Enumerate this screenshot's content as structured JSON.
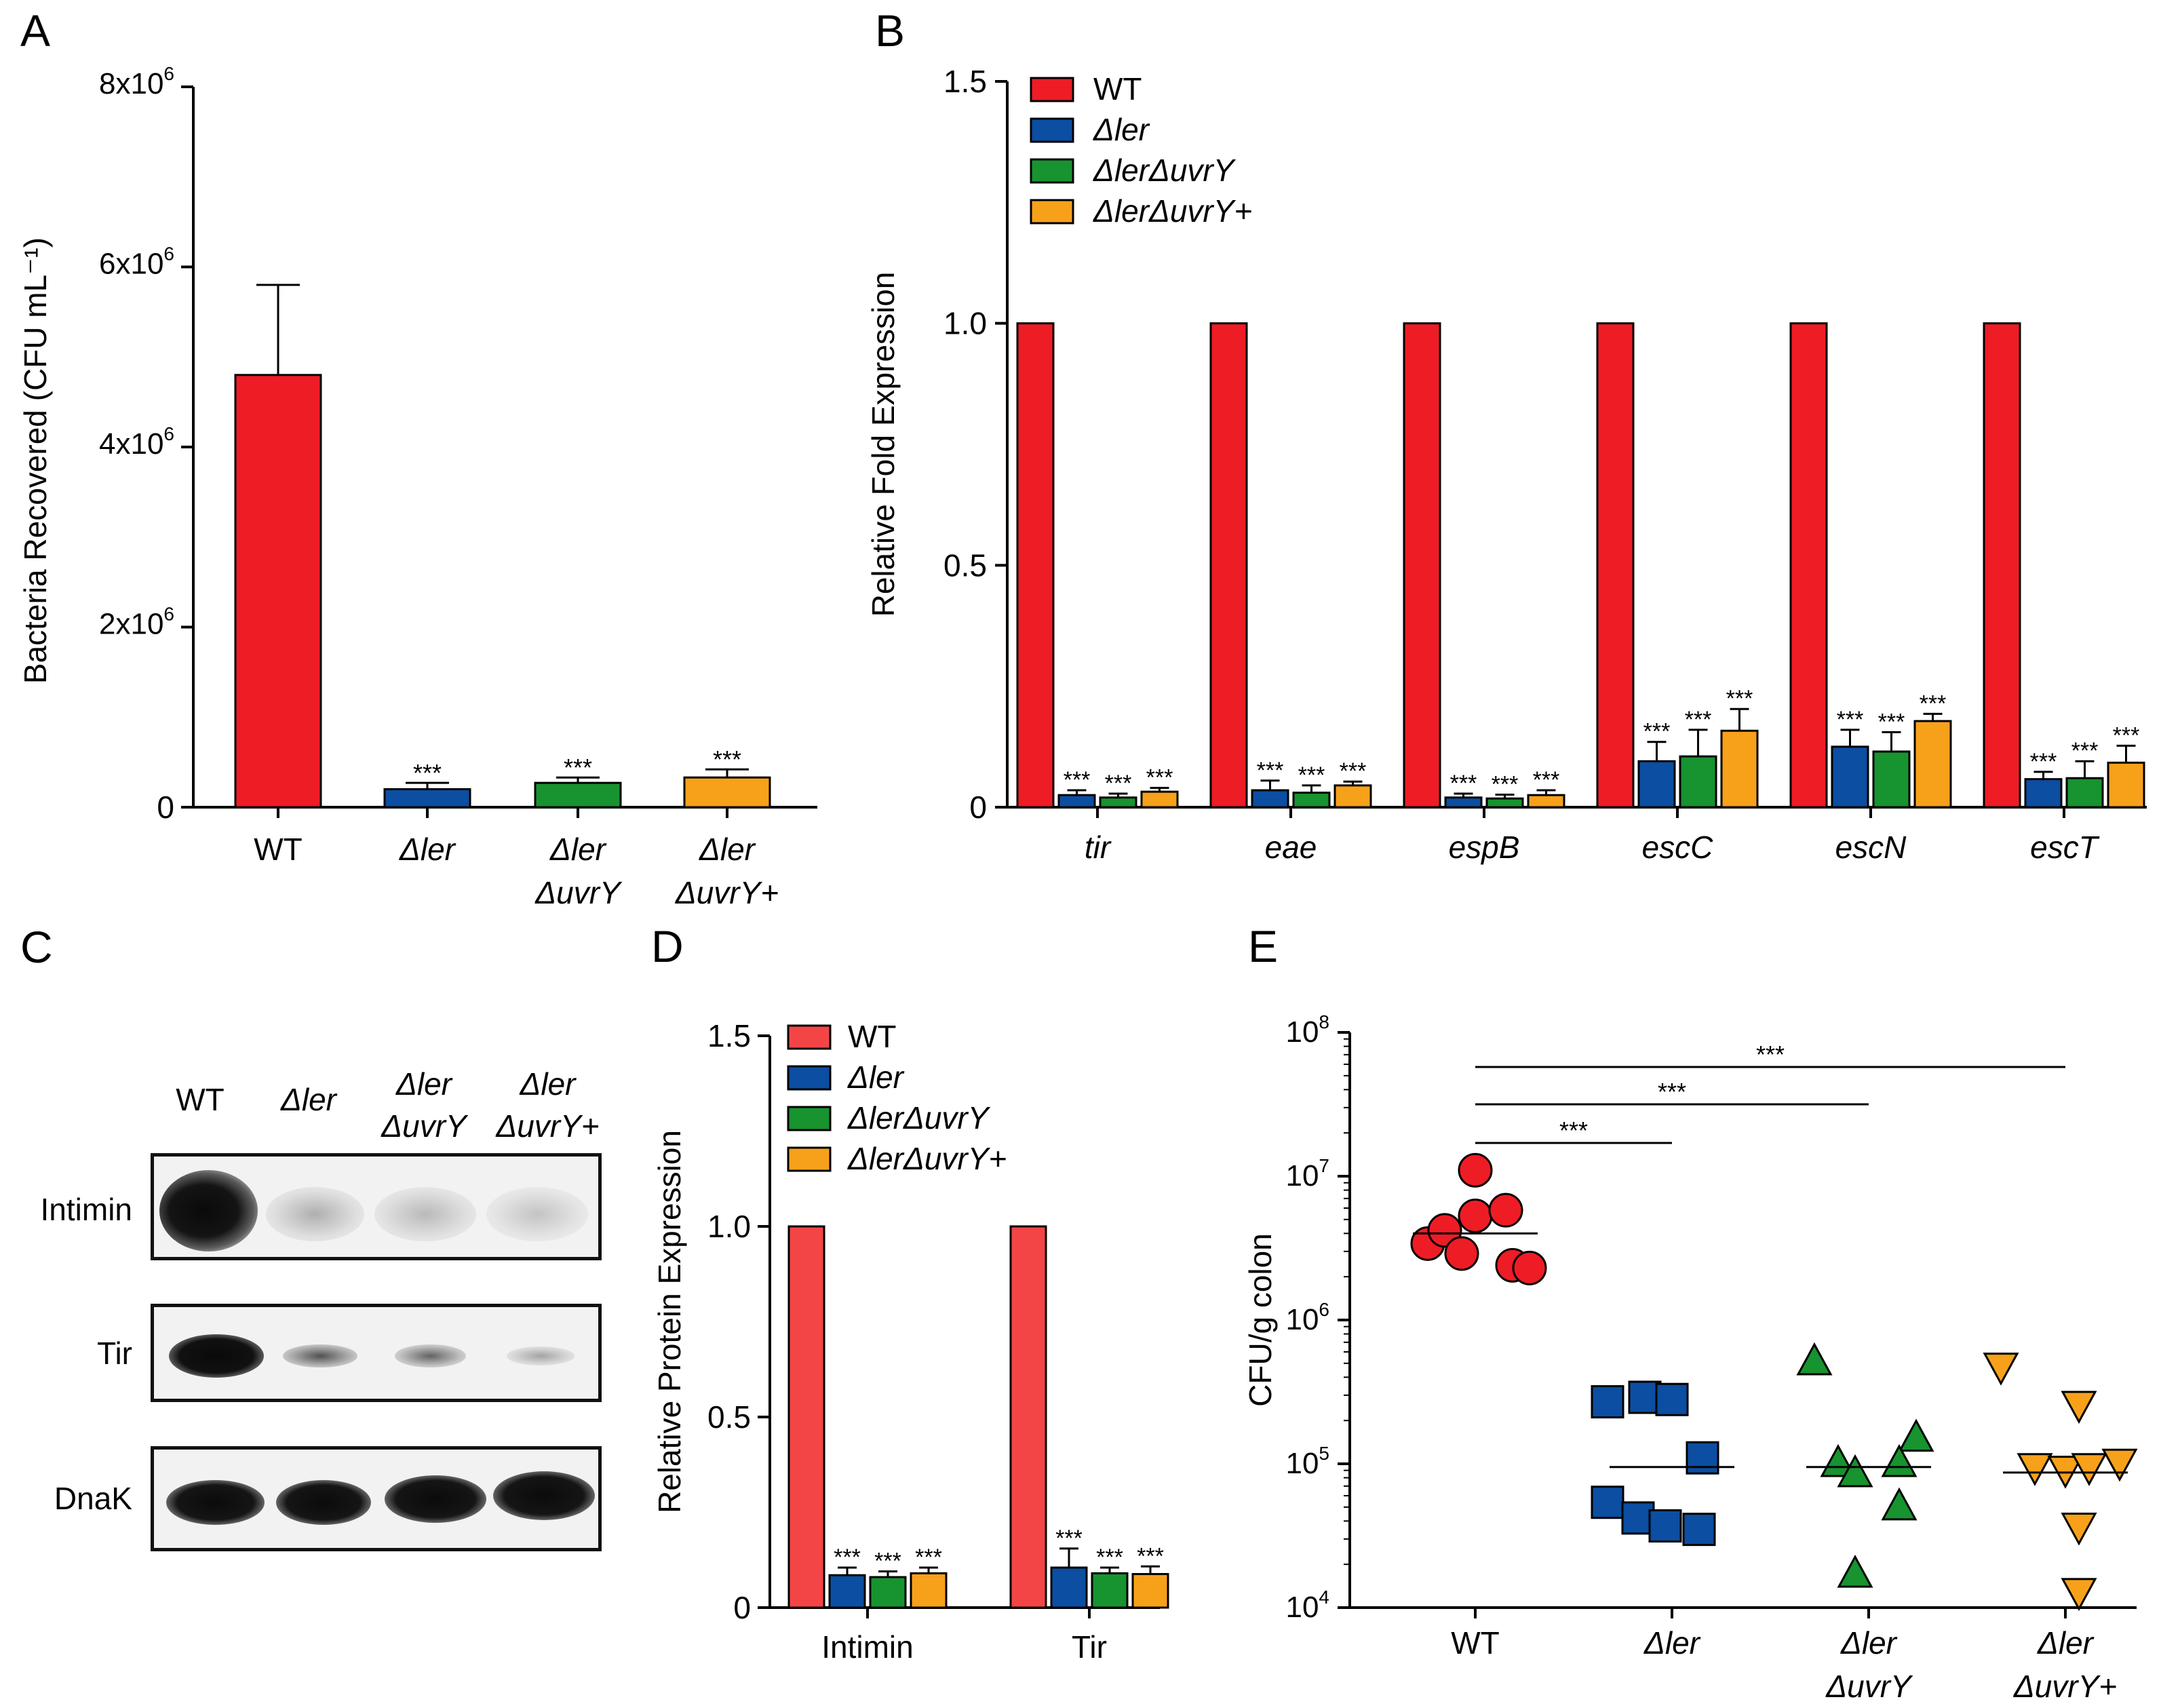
{
  "panels": {
    "A": {
      "letter": "A",
      "chart_data": {
        "type": "bar",
        "title": "",
        "ylabel": "Bacteria Recovered (CFU mL⁻¹)",
        "xlabel": "",
        "ylim": [
          0,
          8000000
        ],
        "yticks": [
          {
            "value": 0,
            "label": "0"
          },
          {
            "value": 2000000,
            "label": "2x10⁶"
          },
          {
            "value": 4000000,
            "label": "4x10⁶"
          },
          {
            "value": 6000000,
            "label": "6x10⁶"
          },
          {
            "value": 8000000,
            "label": "8x10⁶"
          }
        ],
        "categories": [
          {
            "line1": "WT",
            "line2": "",
            "italic": false
          },
          {
            "line1": "Δler",
            "line2": "",
            "italic": true
          },
          {
            "line1": "Δler",
            "line2": "ΔuvrY",
            "italic": true
          },
          {
            "line1": "Δler",
            "line2": "ΔuvrY+",
            "italic": true
          }
        ],
        "values": [
          4800000,
          200000,
          270000,
          330000
        ],
        "errors": [
          1000000,
          70000,
          60000,
          90000
        ],
        "significance": [
          "",
          "***",
          "***",
          "***"
        ],
        "colors": [
          "#ee1c25",
          "#0b4ea2",
          "#17932f",
          "#f7a11a"
        ]
      }
    },
    "B": {
      "letter": "B",
      "chart_data": {
        "type": "bar",
        "title": "",
        "ylabel": "Relative Fold Expression",
        "xlabel": "",
        "ylim": [
          0,
          1.5
        ],
        "yticks": [
          {
            "value": 0,
            "label": "0"
          },
          {
            "value": 0.5,
            "label": "0.5"
          },
          {
            "value": 1.0,
            "label": "1.0"
          },
          {
            "value": 1.5,
            "label": "1.5"
          }
        ],
        "categories": [
          "tir",
          "eae",
          "espB",
          "escC",
          "escN",
          "escT"
        ],
        "series": [
          {
            "name": "WT",
            "color": "#ee1c25",
            "values": [
              1,
              1,
              1,
              1,
              1,
              1
            ],
            "errors": [
              0,
              0,
              0,
              0,
              0,
              0
            ],
            "sig": [
              "",
              "",
              "",
              "",
              "",
              ""
            ]
          },
          {
            "name": "Δler",
            "color": "#0b4ea2",
            "values": [
              0.025,
              0.035,
              0.02,
              0.095,
              0.125,
              0.058
            ],
            "errors": [
              0.01,
              0.02,
              0.008,
              0.04,
              0.035,
              0.015
            ],
            "sig": [
              "***",
              "***",
              "***",
              "***",
              "***",
              "***"
            ]
          },
          {
            "name": "ΔlerΔuvrY",
            "color": "#17932f",
            "values": [
              0.02,
              0.03,
              0.018,
              0.105,
              0.115,
              0.06
            ],
            "errors": [
              0.008,
              0.015,
              0.008,
              0.055,
              0.04,
              0.035
            ],
            "sig": [
              "***",
              "***",
              "***",
              "***",
              "***",
              "***"
            ]
          },
          {
            "name": "ΔlerΔuvrY+",
            "color": "#f7a11a",
            "values": [
              0.032,
              0.045,
              0.025,
              0.158,
              0.178,
              0.092
            ],
            "errors": [
              0.008,
              0.008,
              0.01,
              0.045,
              0.015,
              0.035
            ],
            "sig": [
              "***",
              "***",
              "***",
              "***",
              "***",
              "***"
            ]
          }
        ],
        "legend": "top-left"
      }
    },
    "C": {
      "letter": "C",
      "lanes": [
        {
          "line1": "WT",
          "line2": ""
        },
        {
          "line1": "Δler",
          "line2": ""
        },
        {
          "line1": "Δler",
          "line2": "ΔuvrY"
        },
        {
          "line1": "Δler",
          "line2": "ΔuvrY+"
        }
      ],
      "blots": [
        {
          "label": "Intimin",
          "intensities": [
            1.0,
            0.18,
            0.16,
            0.14
          ]
        },
        {
          "label": "Tir",
          "intensities": [
            1.0,
            0.4,
            0.35,
            0.2
          ]
        },
        {
          "label": "DnaK",
          "intensities": [
            0.95,
            0.95,
            0.95,
            0.95
          ]
        }
      ]
    },
    "D": {
      "letter": "D",
      "chart_data": {
        "type": "bar",
        "title": "",
        "ylabel": "Relative Protein Expression",
        "xlabel": "",
        "ylim": [
          0,
          1.5
        ],
        "yticks": [
          {
            "value": 0,
            "label": "0"
          },
          {
            "value": 0.5,
            "label": "0.5"
          },
          {
            "value": 1.0,
            "label": "1.0"
          },
          {
            "value": 1.5,
            "label": "1.5"
          }
        ],
        "categories": [
          "Intimin",
          "Tir"
        ],
        "series": [
          {
            "name": "WT",
            "color": "#f44546",
            "values": [
              1,
              1
            ],
            "errors": [
              0,
              0
            ],
            "sig": [
              "",
              ""
            ]
          },
          {
            "name": "Δler",
            "color": "#0b4ea2",
            "values": [
              0.085,
              0.105
            ],
            "errors": [
              0.02,
              0.05
            ],
            "sig": [
              "***",
              "***"
            ]
          },
          {
            "name": "ΔlerΔuvrY",
            "color": "#17932f",
            "values": [
              0.08,
              0.09
            ],
            "errors": [
              0.015,
              0.015
            ],
            "sig": [
              "***",
              "***"
            ]
          },
          {
            "name": "ΔlerΔuvrY+",
            "color": "#f7a11a",
            "values": [
              0.09,
              0.088
            ],
            "errors": [
              0.015,
              0.02
            ],
            "sig": [
              "***",
              "***"
            ]
          }
        ],
        "legend": "top-right"
      }
    },
    "E": {
      "letter": "E",
      "chart_data": {
        "type": "scatter",
        "title": "",
        "ylabel": "CFU/g colon",
        "xlabel": "",
        "yscale": "log",
        "ylim": [
          10000,
          100000000
        ],
        "yticks": [
          {
            "value": 10000,
            "base": "10",
            "exp": "4"
          },
          {
            "value": 100000,
            "base": "10",
            "exp": "5"
          },
          {
            "value": 1000000,
            "base": "10",
            "exp": "6"
          },
          {
            "value": 10000000,
            "base": "10",
            "exp": "7"
          },
          {
            "value": 100000000,
            "base": "10",
            "exp": "8"
          }
        ],
        "categories": [
          {
            "line1": "WT",
            "line2": "",
            "italic": false
          },
          {
            "line1": "Δler",
            "line2": "",
            "italic": true
          },
          {
            "line1": "Δler",
            "line2": "ΔuvrY",
            "italic": true
          },
          {
            "line1": "Δler",
            "line2": "ΔuvrY+",
            "italic": true
          }
        ],
        "groups": [
          {
            "name": "WT",
            "marker": "circle",
            "color": "#ee1c25",
            "points": [
              3400000,
              4200000,
              5300000,
              11000000,
              2900000,
              5800000,
              2400000,
              2300000
            ],
            "median": 4000000
          },
          {
            "name": "Δler",
            "marker": "square",
            "color": "#0b4ea2",
            "points": [
              270000,
              290000,
              280000,
              110000,
              54000,
              42000,
              37000,
              35000
            ],
            "median": 95000
          },
          {
            "name": "ΔlerΔuvrY",
            "marker": "triangle-up",
            "color": "#17932f",
            "points": [
              510000,
              150000,
              100000,
              85000,
              100000,
              50000,
              17000
            ],
            "median": 95000
          },
          {
            "name": "ΔlerΔuvrY+",
            "marker": "triangle-down",
            "color": "#f7a11a",
            "points": [
              480000,
              260000,
              96000,
              92000,
              96000,
              103000,
              37000,
              13000
            ],
            "median": 87000
          }
        ],
        "comparisons": [
          {
            "from": 0,
            "to": 1,
            "label": "***"
          },
          {
            "from": 0,
            "to": 2,
            "label": "***"
          },
          {
            "from": 0,
            "to": 3,
            "label": "***"
          }
        ]
      }
    }
  }
}
